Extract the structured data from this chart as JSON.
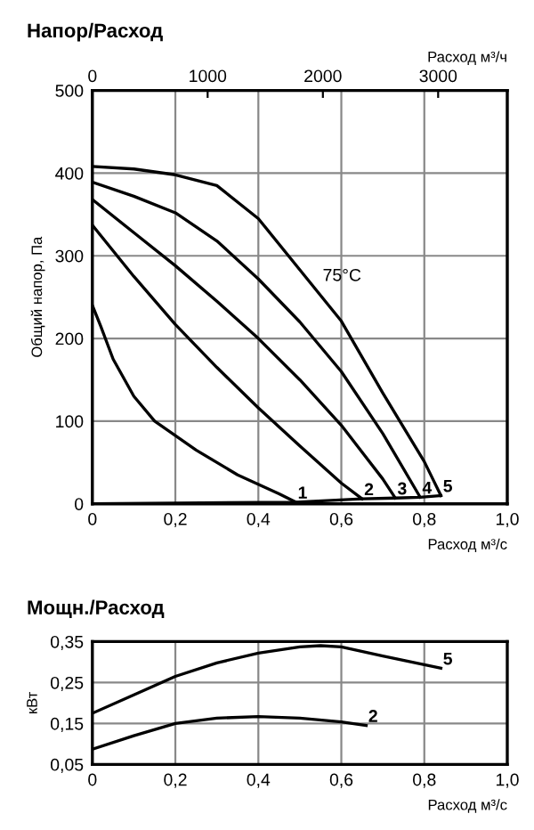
{
  "chart_data": [
    {
      "type": "line",
      "title": "Напор/Расход",
      "xlabel": "Расход м³/с",
      "ylabel": "Общий напор, Па",
      "x2label": "Расход м³/ч",
      "xlim": [
        0,
        1.0
      ],
      "xticks": [
        0,
        {
          "value": 0.2,
          "label": "0,2"
        },
        {
          "value": 0.4,
          "label": "0,4"
        },
        {
          "value": 0.6,
          "label": "0,6"
        },
        {
          "value": 0.8,
          "label": "0,8"
        },
        {
          "value": 1.0,
          "label": "1,0"
        }
      ],
      "x2lim": [
        0,
        3600
      ],
      "x2ticks": [
        0,
        1000,
        2000,
        3000
      ],
      "ylim": [
        0,
        500
      ],
      "yticks": [
        0,
        100,
        200,
        300,
        400,
        500
      ],
      "grid": true,
      "annotations": [
        "75°C"
      ],
      "series": [
        {
          "name": "1",
          "color": "#000000",
          "x": [
            0,
            0.02,
            0.05,
            0.1,
            0.15,
            0.25,
            0.35,
            0.45,
            0.49
          ],
          "values": [
            240,
            215,
            175,
            130,
            100,
            65,
            35,
            12,
            2
          ]
        },
        {
          "name": "2",
          "color": "#000000",
          "x": [
            0,
            0.1,
            0.2,
            0.3,
            0.4,
            0.5,
            0.6,
            0.65
          ],
          "values": [
            337,
            275,
            217,
            165,
            116,
            70,
            25,
            6
          ]
        },
        {
          "name": "3",
          "color": "#000000",
          "x": [
            0,
            0.1,
            0.2,
            0.3,
            0.4,
            0.5,
            0.6,
            0.7,
            0.73
          ],
          "values": [
            368,
            328,
            288,
            245,
            200,
            150,
            95,
            30,
            7
          ]
        },
        {
          "name": "4",
          "color": "#000000",
          "x": [
            0,
            0.1,
            0.2,
            0.3,
            0.4,
            0.5,
            0.6,
            0.7,
            0.79
          ],
          "values": [
            389,
            372,
            352,
            318,
            272,
            220,
            160,
            85,
            8
          ]
        },
        {
          "name": "5",
          "color": "#000000",
          "x": [
            0,
            0.1,
            0.2,
            0.3,
            0.4,
            0.5,
            0.6,
            0.7,
            0.8,
            0.84
          ],
          "values": [
            408,
            405,
            398,
            385,
            345,
            283,
            221,
            134,
            51,
            10
          ]
        },
        {
          "color": "#000000",
          "x": [
            0,
            0.2,
            0.49,
            0.65,
            0.73,
            0.79,
            0.84
          ],
          "values": [
            0,
            1,
            2,
            6,
            7,
            8,
            10
          ]
        }
      ]
    },
    {
      "type": "line",
      "title": "Мощн./Расход",
      "xlabel": "Расход м³/с",
      "ylabel": "кВт",
      "xlim": [
        0,
        1.0
      ],
      "xticks": [
        0,
        {
          "value": 0.2,
          "label": "0,2"
        },
        {
          "value": 0.4,
          "label": "0,4"
        },
        {
          "value": 0.6,
          "label": "0,6"
        },
        {
          "value": 0.8,
          "label": "0,8"
        },
        {
          "value": 1.0,
          "label": "1,0"
        }
      ],
      "ylim": [
        0.05,
        0.35
      ],
      "yticks": [
        {
          "value": 0.05,
          "label": "0,05"
        },
        {
          "value": 0.15,
          "label": "0,15"
        },
        {
          "value": 0.25,
          "label": "0,25"
        },
        {
          "value": 0.35,
          "label": "0,35"
        }
      ],
      "grid": true,
      "series": [
        {
          "name": "5",
          "color": "#000000",
          "x": [
            0,
            0.1,
            0.2,
            0.3,
            0.4,
            0.5,
            0.55,
            0.6,
            0.7,
            0.84
          ],
          "values": [
            0.175,
            0.22,
            0.265,
            0.298,
            0.322,
            0.337,
            0.34,
            0.337,
            0.315,
            0.285
          ]
        },
        {
          "name": "2",
          "color": "#000000",
          "x": [
            0,
            0.1,
            0.2,
            0.3,
            0.4,
            0.5,
            0.6,
            0.66
          ],
          "values": [
            0.087,
            0.12,
            0.15,
            0.163,
            0.167,
            0.163,
            0.154,
            0.145
          ]
        }
      ]
    }
  ]
}
